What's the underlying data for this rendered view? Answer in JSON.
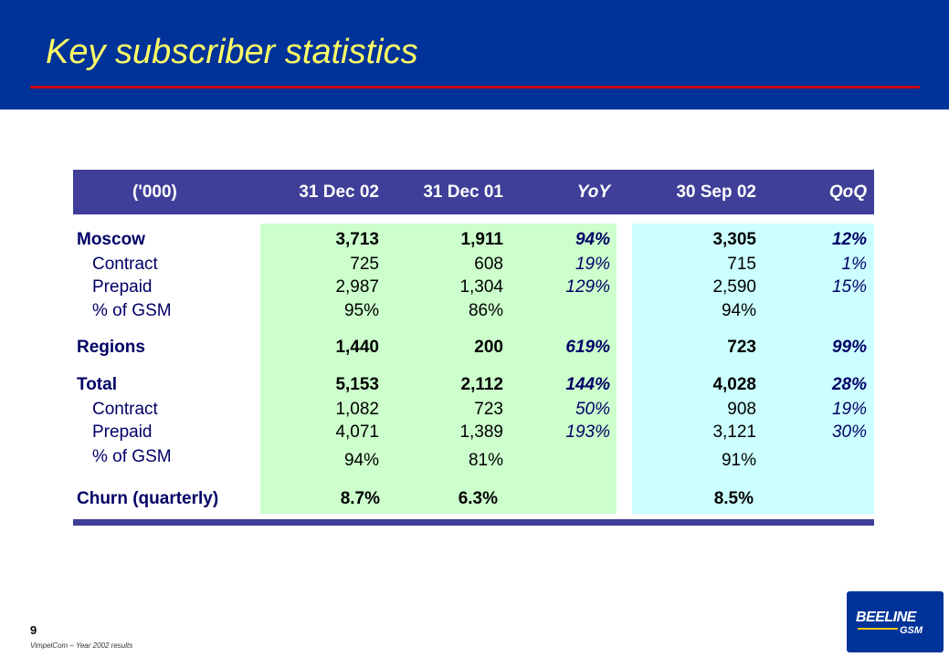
{
  "slide": {
    "title": "Key subscriber statistics",
    "page_number": "9",
    "footer": "VimpelCom – Year 2002 results"
  },
  "logo": {
    "brand": "BEELINE",
    "sub": "GSM"
  },
  "colors": {
    "header_bg": "#003399",
    "title_text": "#ffff66",
    "title_rule": "#cc0000",
    "table_header_bg": "#3f3f99",
    "current_period_bg": "#ccffcc",
    "comparison_bg": "#ccffff"
  },
  "table": {
    "headers": [
      "('000)",
      "31 Dec 02",
      "31 Dec 01",
      "YoY",
      "30 Sep 02",
      "QoQ"
    ],
    "rows": [
      {
        "label": "Moscow",
        "dec02": "3,713",
        "dec01": "1,911",
        "yoy": "94%",
        "sep02": "3,305",
        "qoq": "12%"
      },
      {
        "label": "Contract",
        "dec02": "725",
        "dec01": "608",
        "yoy": "19%",
        "sep02": "715",
        "qoq": "1%"
      },
      {
        "label": "Prepaid",
        "dec02": "2,987",
        "dec01": "1,304",
        "yoy": "129%",
        "sep02": "2,590",
        "qoq": "15%"
      },
      {
        "label": "% of GSM",
        "dec02": "95%",
        "dec01": "86%",
        "yoy": "",
        "sep02": "94%",
        "qoq": ""
      },
      {
        "label": "Regions",
        "dec02": "1,440",
        "dec01": "200",
        "yoy": "619%",
        "sep02": "723",
        "qoq": "99%"
      },
      {
        "label": "Total",
        "dec02": "5,153",
        "dec01": "2,112",
        "yoy": "144%",
        "sep02": "4,028",
        "qoq": "28%"
      },
      {
        "label": "Contract",
        "dec02": "1,082",
        "dec01": "723",
        "yoy": "50%",
        "sep02": "908",
        "qoq": "19%"
      },
      {
        "label": "Prepaid",
        "dec02": "4,071",
        "dec01": "1,389",
        "yoy": "193%",
        "sep02": "3,121",
        "qoq": "30%"
      },
      {
        "label": "% of GSM",
        "dec02": "94%",
        "dec01": "81%",
        "yoy": "",
        "sep02": "91%",
        "qoq": ""
      },
      {
        "label": "Churn (quarterly)",
        "dec02": "8.7%",
        "dec01": "6.3%",
        "yoy": "",
        "sep02": "8.5%",
        "qoq": ""
      }
    ]
  }
}
